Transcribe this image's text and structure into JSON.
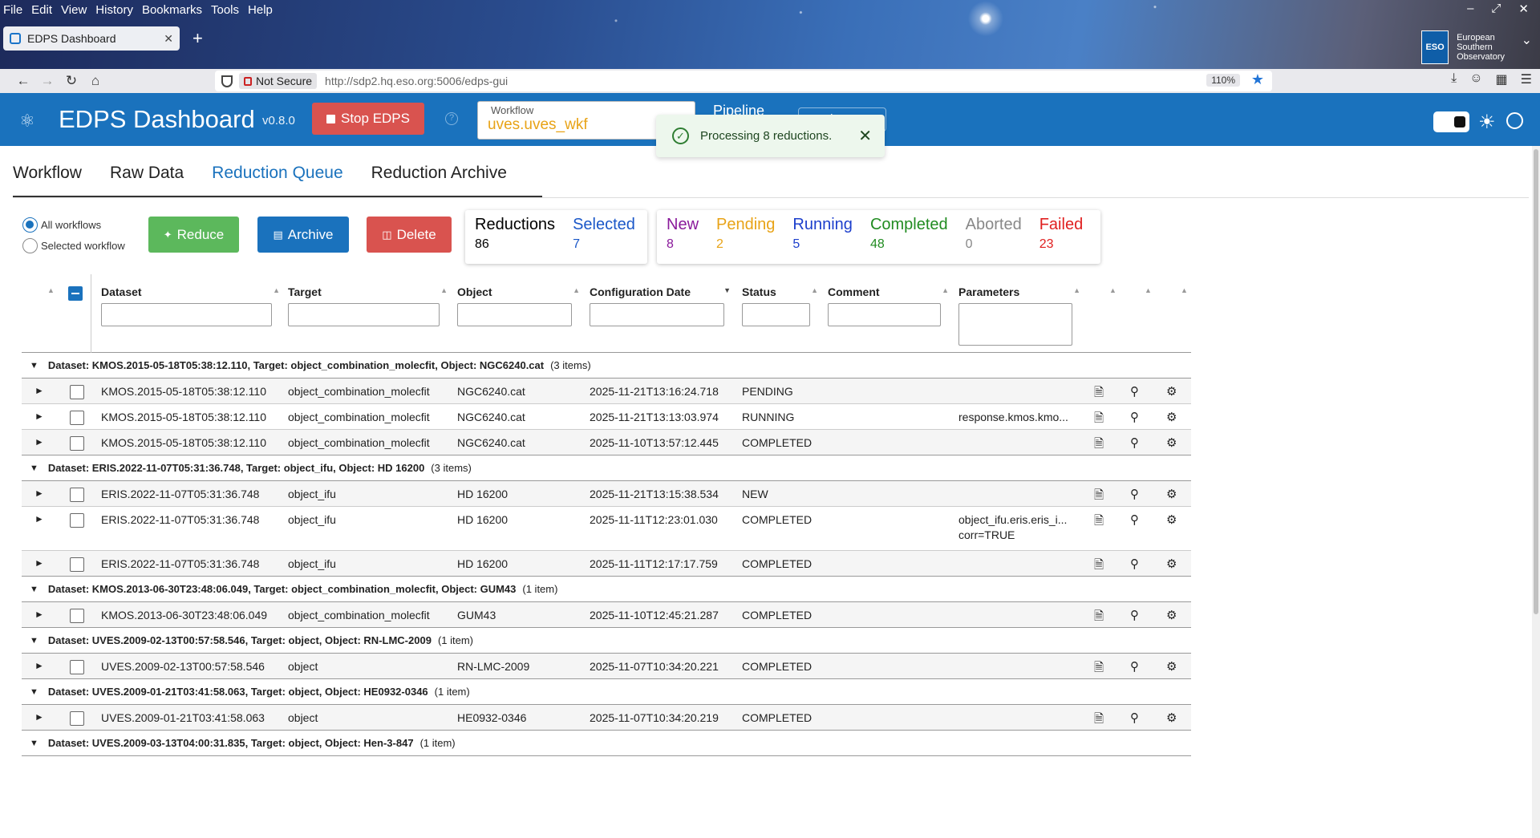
{
  "browser": {
    "menu": [
      "File",
      "Edit",
      "View",
      "History",
      "Bookmarks",
      "Tools",
      "Help"
    ],
    "tab_title": "EDPS Dashboard",
    "not_secure": "Not Secure",
    "url": "http://sdp2.hq.eso.org:5006/edps-gui",
    "zoom": "110%",
    "org_line1": "European",
    "org_line2": "Southern",
    "org_line3": "Observatory"
  },
  "header": {
    "title": "EDPS Dashboard",
    "version": "v0.8.0",
    "stop_label": "Stop EDPS",
    "workflow_label": "Workflow",
    "workflow_value": "uves.uves_wkf",
    "pipeline_label": "Pipeline",
    "help_label": "Help"
  },
  "toast": {
    "message": "Processing 8 reductions."
  },
  "tabs": [
    "Workflow",
    "Raw Data",
    "Reduction Queue",
    "Reduction Archive"
  ],
  "filter": {
    "all": "All workflows",
    "selected": "Selected workflow"
  },
  "actions": {
    "reduce": "Reduce",
    "archive": "Archive",
    "delete": "Delete"
  },
  "stats": {
    "reductions_label": "Reductions",
    "reductions_value": "86",
    "selected_label": "Selected",
    "selected_value": "7",
    "new_label": "New",
    "new_value": "8",
    "pending_label": "Pending",
    "pending_value": "2",
    "running_label": "Running",
    "running_value": "5",
    "completed_label": "Completed",
    "completed_value": "48",
    "aborted_label": "Aborted",
    "aborted_value": "0",
    "failed_label": "Failed",
    "failed_value": "23",
    "colors": {
      "new": "#8a1a9b",
      "pending": "#e8a317",
      "running": "#1d3fcc",
      "completed": "#218c21",
      "aborted": "#888888",
      "failed": "#e02020"
    }
  },
  "columns": {
    "dataset": "Dataset",
    "target": "Target",
    "object": "Object",
    "config_date": "Configuration Date",
    "status": "Status",
    "comment": "Comment",
    "parameters": "Parameters"
  },
  "groups": [
    {
      "title": "Dataset: KMOS.2015-05-18T05:38:12.110, Target: object_combination_molecfit, Object: NGC6240.cat",
      "count": "(3 items)",
      "rows": [
        {
          "dataset": "KMOS.2015-05-18T05:38:12.110",
          "target": "object_combination_molecfit",
          "object": "NGC6240.cat",
          "date": "2025-11-21T13:16:24.718",
          "status": "PENDING",
          "param1": "",
          "param2": ""
        },
        {
          "dataset": "KMOS.2015-05-18T05:38:12.110",
          "target": "object_combination_molecfit",
          "object": "NGC6240.cat",
          "date": "2025-11-21T13:13:03.974",
          "status": "RUNNING",
          "param1": "response.kmos.kmo...",
          "param2": ""
        },
        {
          "dataset": "KMOS.2015-05-18T05:38:12.110",
          "target": "object_combination_molecfit",
          "object": "NGC6240.cat",
          "date": "2025-11-10T13:57:12.445",
          "status": "COMPLETED",
          "param1": "",
          "param2": ""
        }
      ]
    },
    {
      "title": "Dataset: ERIS.2022-11-07T05:31:36.748, Target: object_ifu, Object: HD 16200",
      "count": "(3 items)",
      "rows": [
        {
          "dataset": "ERIS.2022-11-07T05:31:36.748",
          "target": "object_ifu",
          "object": "HD 16200",
          "date": "2025-11-21T13:15:38.534",
          "status": "NEW",
          "param1": "",
          "param2": ""
        },
        {
          "dataset": "ERIS.2022-11-07T05:31:36.748",
          "target": "object_ifu",
          "object": "HD 16200",
          "date": "2025-11-11T12:23:01.030",
          "status": "COMPLETED",
          "param1": "object_ifu.eris.eris_i...",
          "param2": "corr=TRUE"
        },
        {
          "dataset": "ERIS.2022-11-07T05:31:36.748",
          "target": "object_ifu",
          "object": "HD 16200",
          "date": "2025-11-11T12:17:17.759",
          "status": "COMPLETED",
          "param1": "",
          "param2": ""
        }
      ]
    },
    {
      "title": "Dataset: KMOS.2013-06-30T23:48:06.049, Target: object_combination_molecfit, Object: GUM43",
      "count": "(1 item)",
      "rows": [
        {
          "dataset": "KMOS.2013-06-30T23:48:06.049",
          "target": "object_combination_molecfit",
          "object": "GUM43",
          "date": "2025-11-10T12:45:21.287",
          "status": "COMPLETED",
          "param1": "",
          "param2": ""
        }
      ]
    },
    {
      "title": "Dataset: UVES.2009-02-13T00:57:58.546, Target: object, Object: RN-LMC-2009",
      "count": "(1 item)",
      "rows": [
        {
          "dataset": "UVES.2009-02-13T00:57:58.546",
          "target": "object",
          "object": "RN-LMC-2009",
          "date": "2025-11-07T10:34:20.221",
          "status": "COMPLETED",
          "param1": "",
          "param2": ""
        }
      ]
    },
    {
      "title": "Dataset: UVES.2009-01-21T03:41:58.063, Target: object, Object: HE0932-0346",
      "count": "(1 item)",
      "rows": [
        {
          "dataset": "UVES.2009-01-21T03:41:58.063",
          "target": "object",
          "object": "HE0932-0346",
          "date": "2025-11-07T10:34:20.219",
          "status": "COMPLETED",
          "param1": "",
          "param2": ""
        }
      ]
    },
    {
      "title": "Dataset: UVES.2009-03-13T04:00:31.835, Target: object, Object: Hen-3-847",
      "count": "(1 item)",
      "rows": []
    }
  ]
}
